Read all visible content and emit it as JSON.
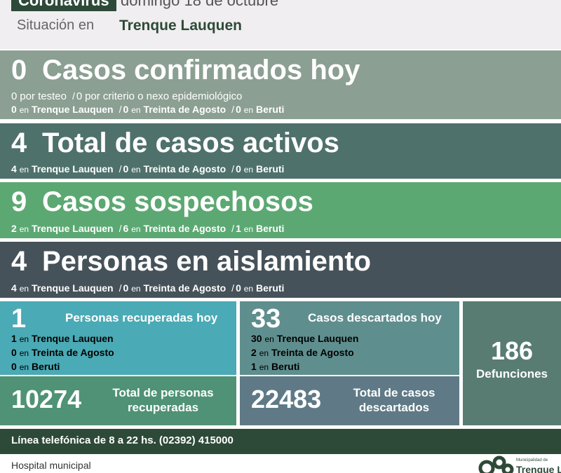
{
  "header": {
    "tag": "Coronavirus",
    "date": "domingo 18 de octubre",
    "situation_label": "Situación en",
    "place": "Trenque Lauquen"
  },
  "separator": "/",
  "summary": [
    {
      "number": 0,
      "title": "Casos confirmados hoy",
      "lines": [
        [
          [
            0,
            "por testeo"
          ],
          [
            0,
            "por criterio o nexo epidemiológico"
          ]
        ],
        [
          [
            0,
            "en",
            "Trenque Lauquen"
          ],
          [
            0,
            "en",
            "Treinta de Agosto"
          ],
          [
            0,
            "en",
            "Beruti"
          ]
        ]
      ]
    },
    {
      "number": 4,
      "title": "Total de casos activos",
      "lines": [
        [
          [
            4,
            "en",
            "Trenque Lauquen"
          ],
          [
            0,
            "en",
            "Treinta de Agosto"
          ],
          [
            0,
            "en",
            "Beruti"
          ]
        ]
      ]
    },
    {
      "number": 9,
      "title": "Casos sospechosos",
      "lines": [
        [
          [
            2,
            "en",
            "Trenque Lauquen"
          ],
          [
            6,
            "en",
            "Treinta de Agosto"
          ],
          [
            1,
            "en",
            "Beruti"
          ]
        ]
      ]
    },
    {
      "number": 4,
      "title": "Personas en aislamiento",
      "lines": [
        [
          [
            4,
            "en",
            "Trenque Lauquen"
          ],
          [
            0,
            "en",
            "Treinta de Agosto"
          ],
          [
            0,
            "en",
            "Beruti"
          ]
        ]
      ]
    }
  ],
  "recovered": {
    "number": 1,
    "title": "Personas recuperadas hoy",
    "items": [
      [
        1,
        "en",
        "Trenque Lauquen"
      ],
      [
        0,
        "en",
        "Treinta de Agosto"
      ],
      [
        0,
        "en",
        "Beruti"
      ]
    ],
    "total": 10274,
    "total_label": "Total de personas recuperadas"
  },
  "discarded": {
    "number": 33,
    "title": "Casos descartados hoy",
    "items": [
      [
        30,
        "en",
        "Trenque Lauquen"
      ],
      [
        2,
        "en",
        "Treinta de Agosto"
      ],
      [
        1,
        "en",
        "Beruti"
      ]
    ],
    "total": 22483,
    "total_label": "Total de casos descartados"
  },
  "deaths": {
    "number": 186,
    "title": "Defunciones"
  },
  "footer": {
    "phone": "Línea telefónica de 8 a 22 hs. (02392) 415000",
    "hospital": "Hospital municipal",
    "logo_small": "Municipalidad de",
    "logo_big": "Trenque Lauquen"
  }
}
